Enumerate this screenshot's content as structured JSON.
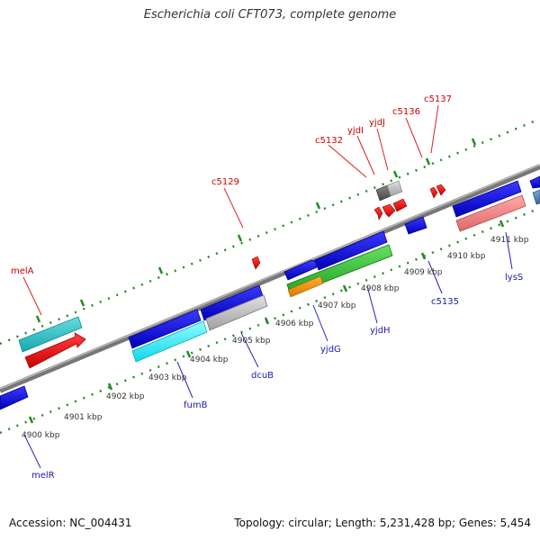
{
  "title": "Escherichia coli CFT073, complete genome",
  "footer": {
    "accession": "Accession: NC_004431",
    "summary": "Topology: circular; Length: 5,231,428 bp; Genes: 5,454"
  },
  "colors": {
    "backbone": "#888888",
    "tick": "#228b22",
    "tick_label": "#333333",
    "forward_label": "#cc0000",
    "reverse_label": "#1a1aaa",
    "leader_forward": "#dd2222",
    "leader_reverse": "#2222bb"
  },
  "scale": {
    "unit": "kbp",
    "ticks": [
      "4900 kbp",
      "4901 kbp",
      "4902 kbp",
      "4903 kbp",
      "4904 kbp",
      "4905 kbp",
      "4906 kbp",
      "4907 kbp",
      "4908 kbp",
      "4909 kbp",
      "4910 kbp",
      "4911 kbp"
    ]
  },
  "forward_labels": [
    "melA",
    "c5129",
    "c5132",
    "yjdI",
    "yjdJ",
    "c5136",
    "c5137"
  ],
  "reverse_labels": [
    "melR",
    "fumB",
    "dcuB",
    "yjdG",
    "yjdH",
    "c5135",
    "lysS"
  ]
}
